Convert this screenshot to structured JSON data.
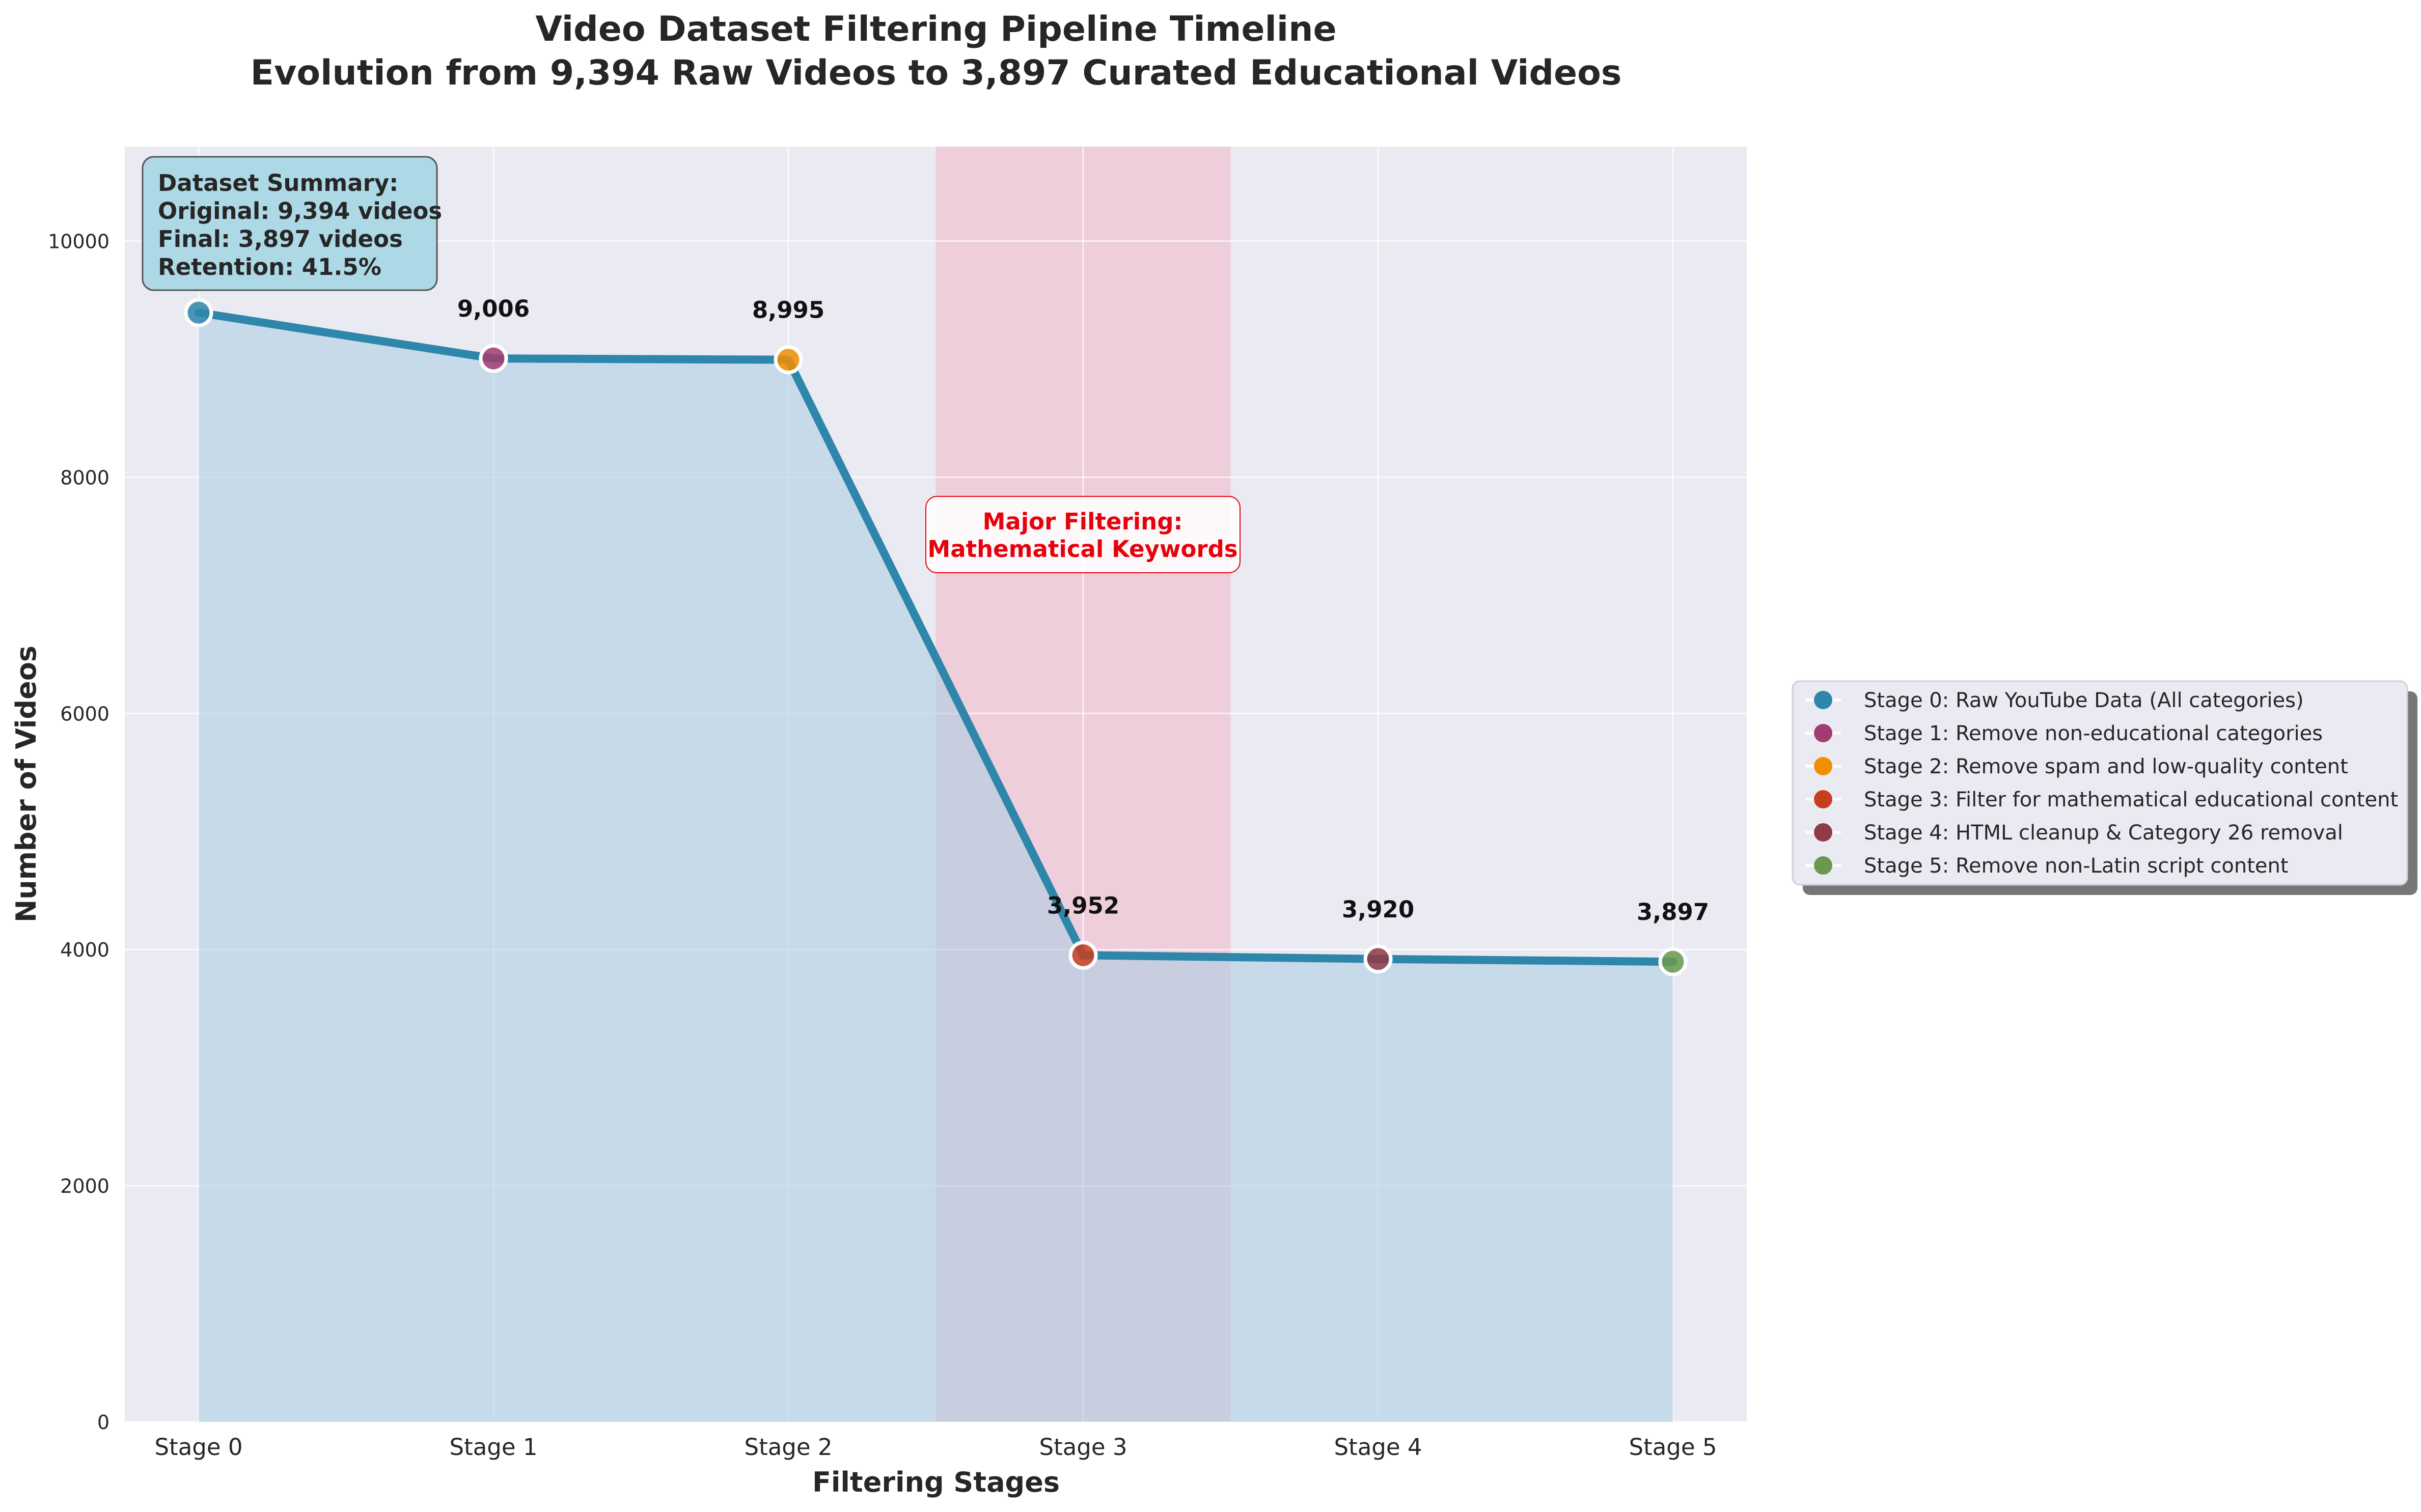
{
  "chart_data": {
    "type": "line",
    "title": "Video Dataset Filtering Pipeline Timeline",
    "subtitle": "Evolution from 9,394 Raw Videos to 3,897 Curated Educational Videos",
    "xlabel": "Filtering Stages",
    "ylabel": "Number of Videos",
    "categories": [
      "Stage 0",
      "Stage 1",
      "Stage 2",
      "Stage 3",
      "Stage 4",
      "Stage 5"
    ],
    "values": [
      9394,
      9006,
      8995,
      3952,
      3920,
      3897
    ],
    "value_labels": [
      "",
      "9,006",
      "8,995",
      "3,952",
      "3,920",
      "3,897"
    ],
    "ylim": [
      0,
      10800
    ],
    "y_ticks": [
      0,
      2000,
      4000,
      6000,
      8000,
      10000
    ],
    "y_tick_labels": [
      "0",
      "2000",
      "4000",
      "6000",
      "8000",
      "10000"
    ],
    "grid": true,
    "area_fill": true,
    "line_color": "#2e86ab",
    "area_color": "#a9cce3",
    "marker_colors": [
      "#2e86ab",
      "#a23b72",
      "#f18f01",
      "#c73e1d",
      "#8e3b46",
      "#6a994e"
    ],
    "legend_position": "right",
    "legend": [
      "Stage 0: Raw YouTube Data (All categories)",
      "Stage 1: Remove non-educational categories",
      "Stage 2: Remove spam and low-quality content",
      "Stage 3: Filter for mathematical educational content",
      "Stage 4: HTML cleanup & Category 26 removal",
      "Stage 5: Remove non-Latin script content"
    ],
    "highlight": {
      "from_stage": 2.5,
      "to_stage": 3.5,
      "color": "#f4a6b8",
      "label_lines": [
        "Major Filtering:",
        "Mathematical Keywords"
      ],
      "label_color": "#e8000b"
    },
    "summary": {
      "lines": [
        "Dataset Summary:",
        "Original: 9,394 videos",
        "Final: 3,897 videos",
        "Retention: 41.5%"
      ],
      "box_color": "#add8e6"
    }
  }
}
